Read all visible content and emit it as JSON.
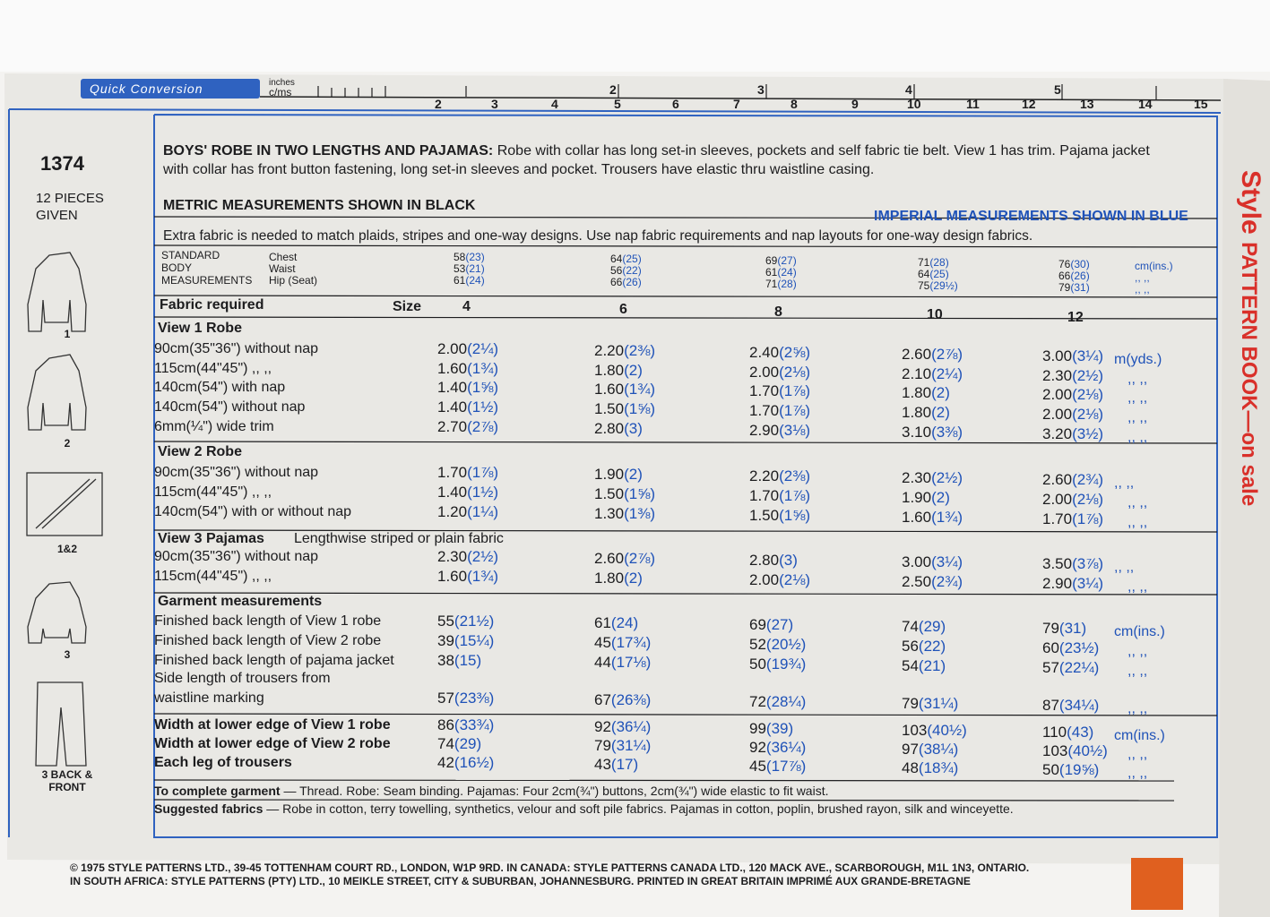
{
  "ruler": {
    "title": "Quick Conversion",
    "inches_label": "inches",
    "cm_label": "c/ms",
    "inch_numbers": [
      "2",
      "3",
      "4",
      "5"
    ],
    "cm_numbers": [
      "2",
      "3",
      "4",
      "5",
      "6",
      "7",
      "8",
      "9",
      "10",
      "11",
      "12",
      "13",
      "14",
      "15"
    ]
  },
  "sidebar": {
    "pattern_number": "1374",
    "pieces": "12 PIECES GIVEN",
    "views": [
      "1",
      "2",
      "1&2",
      "3",
      "3 BACK & FRONT"
    ]
  },
  "description": {
    "title": "BOYS' ROBE IN TWO LENGTHS AND PAJAMAS:",
    "text": "Robe with collar has long set-in sleeves, pockets and self fabric tie belt. View 1 has trim. Pajama jacket with collar has front button fastening, long set-in sleeves and pocket. Trousers have elastic thru waistline casing."
  },
  "metric_note": "METRIC MEASUREMENTS SHOWN IN BLACK",
  "imperial_note": "IMPERIAL MEASUREMENTS SHOWN IN BLUE",
  "extra_fabric_note": "Extra fabric is needed to match plaids, stripes and one-way designs. Use nap fabric requirements and nap layouts for one-way design fabrics.",
  "body_measurements": {
    "label": [
      "STANDARD",
      "BODY",
      "MEASUREMENTS"
    ],
    "rows": [
      {
        "name": "Chest",
        "cells": [
          [
            "58",
            "(23)"
          ],
          [
            "64",
            "(25)"
          ],
          [
            "69",
            "(27)"
          ],
          [
            "71",
            "(28)"
          ],
          [
            "76",
            "(30)"
          ]
        ],
        "unit": "cm(ins.)"
      },
      {
        "name": "Waist",
        "cells": [
          [
            "53",
            "(21)"
          ],
          [
            "56",
            "(22)"
          ],
          [
            "61",
            "(24)"
          ],
          [
            "64",
            "(25)"
          ],
          [
            "66",
            "(26)"
          ]
        ],
        "unit": ",,  ,,"
      },
      {
        "name": "Hip (Seat)",
        "cells": [
          [
            "61",
            "(24)"
          ],
          [
            "66",
            "(26)"
          ],
          [
            "71",
            "(28)"
          ],
          [
            "75",
            "(29½)"
          ],
          [
            "79",
            "(31)"
          ]
        ],
        "unit": ",,  ,,"
      }
    ]
  },
  "fabric_header": {
    "label": "Fabric required",
    "size_label": "Size",
    "sizes": [
      "4",
      "6",
      "8",
      "10",
      "12"
    ]
  },
  "sections": [
    {
      "title": "View 1  Robe",
      "rows": [
        {
          "label": "90cm(35\"36\") without nap",
          "cells": [
            [
              "2.00",
              "(2¼)"
            ],
            [
              "2.20",
              "(2⅜)"
            ],
            [
              "2.40",
              "(2⅝)"
            ],
            [
              "2.60",
              "(2⅞)"
            ],
            [
              "3.00",
              "(3¼)"
            ]
          ],
          "unit": "m(yds.)"
        },
        {
          "label": "115cm(44\"45\")    ,,     ,,",
          "cells": [
            [
              "1.60",
              "(1¾)"
            ],
            [
              "1.80",
              "(2)"
            ],
            [
              "2.00",
              "(2⅛)"
            ],
            [
              "2.10",
              "(2¼)"
            ],
            [
              "2.30",
              "(2½)"
            ]
          ],
          "unit": ",,  ,,"
        },
        {
          "label": "140cm(54\") with nap",
          "cells": [
            [
              "1.40",
              "(1⅝)"
            ],
            [
              "1.60",
              "(1¾)"
            ],
            [
              "1.70",
              "(1⅞)"
            ],
            [
              "1.80",
              "(2)"
            ],
            [
              "2.00",
              "(2⅛)"
            ]
          ],
          "unit": ",,  ,,"
        },
        {
          "label": "140cm(54\") without nap",
          "cells": [
            [
              "1.40",
              "(1½)"
            ],
            [
              "1.50",
              "(1⅝)"
            ],
            [
              "1.70",
              "(1⅞)"
            ],
            [
              "1.80",
              "(2)"
            ],
            [
              "2.00",
              "(2⅛)"
            ]
          ],
          "unit": ",,  ,,"
        },
        {
          "label": "6mm(¼\") wide trim",
          "cells": [
            [
              "2.70",
              "(2⅞)"
            ],
            [
              "2.80",
              "(3)"
            ],
            [
              "2.90",
              "(3⅛)"
            ],
            [
              "3.10",
              "(3⅜)"
            ],
            [
              "3.20",
              "(3½)"
            ]
          ],
          "unit": ",,  ,,"
        }
      ]
    },
    {
      "title": "View 2  Robe",
      "rows": [
        {
          "label": "90cm(35\"36\") without nap",
          "cells": [
            [
              "1.70",
              "(1⅞)"
            ],
            [
              "1.90",
              "(2)"
            ],
            [
              "2.20",
              "(2⅜)"
            ],
            [
              "2.30",
              "(2½)"
            ],
            [
              "2.60",
              "(2¾)"
            ]
          ],
          "unit": ",,  ,,"
        },
        {
          "label": "115cm(44\"45\")    ,,     ,,",
          "cells": [
            [
              "1.40",
              "(1½)"
            ],
            [
              "1.50",
              "(1⅝)"
            ],
            [
              "1.70",
              "(1⅞)"
            ],
            [
              "1.90",
              "(2)"
            ],
            [
              "2.00",
              "(2⅛)"
            ]
          ],
          "unit": ",,  ,,"
        },
        {
          "label": "140cm(54\") with or without nap",
          "cells": [
            [
              "1.20",
              "(1¼)"
            ],
            [
              "1.30",
              "(1⅜)"
            ],
            [
              "1.50",
              "(1⅝)"
            ],
            [
              "1.60",
              "(1¾)"
            ],
            [
              "1.70",
              "(1⅞)"
            ]
          ],
          "unit": ",,  ,,"
        }
      ]
    },
    {
      "title": "View 3  Pajamas",
      "note": "Lengthwise striped or plain fabric",
      "rows": [
        {
          "label": "90cm(35\"36\") without nap",
          "cells": [
            [
              "2.30",
              "(2½)"
            ],
            [
              "2.60",
              "(2⅞)"
            ],
            [
              "2.80",
              "(3)"
            ],
            [
              "3.00",
              "(3¼)"
            ],
            [
              "3.50",
              "(3⅞)"
            ]
          ],
          "unit": ",,  ,,"
        },
        {
          "label": "115cm(44\"45\")    ,,     ,,",
          "cells": [
            [
              "1.60",
              "(1¾)"
            ],
            [
              "1.80",
              "(2)"
            ],
            [
              "2.00",
              "(2⅛)"
            ],
            [
              "2.50",
              "(2¾)"
            ],
            [
              "2.90",
              "(3¼)"
            ]
          ],
          "unit": ",,  ,,"
        }
      ]
    },
    {
      "title": "Garment measurements",
      "rows": [
        {
          "label": "Finished back length of View 1 robe",
          "cells": [
            [
              "55",
              "(21½)"
            ],
            [
              "61",
              "(24)"
            ],
            [
              "69",
              "(27)"
            ],
            [
              "74",
              "(29)"
            ],
            [
              "79",
              "(31)"
            ]
          ],
          "unit": "cm(ins.)"
        },
        {
          "label": "Finished back length of View 2 robe",
          "cells": [
            [
              "39",
              "(15¼)"
            ],
            [
              "45",
              "(17¾)"
            ],
            [
              "52",
              "(20½)"
            ],
            [
              "56",
              "(22)"
            ],
            [
              "60",
              "(23½)"
            ]
          ],
          "unit": ",,  ,,"
        },
        {
          "label": "Finished back length of pajama jacket",
          "cells": [
            [
              "38",
              "(15)"
            ],
            [
              "44",
              "(17⅛)"
            ],
            [
              "50",
              "(19¾)"
            ],
            [
              "54",
              "(21)"
            ],
            [
              "57",
              "(22¼)"
            ]
          ],
          "unit": ",,  ,,"
        },
        {
          "label": [
            "Side length of trousers from",
            "waistline marking"
          ],
          "cells": [
            [
              "57",
              "(23⅜)"
            ],
            [
              "67",
              "(26⅜)"
            ],
            [
              "72",
              "(28¼)"
            ],
            [
              "79",
              "(31¼)"
            ],
            [
              "87",
              "(34¼)"
            ]
          ],
          "unit": ",,  ,,"
        }
      ]
    },
    {
      "rows": [
        {
          "label": "Width at lower edge of View 1 robe",
          "cells": [
            [
              "86",
              "(33¾)"
            ],
            [
              "92",
              "(36¼)"
            ],
            [
              "99",
              "(39)"
            ],
            [
              "103",
              "(40½)"
            ],
            [
              "110",
              "(43)"
            ]
          ],
          "unit": "cm(ins.)"
        },
        {
          "label": "Width at lower edge of View 2 robe",
          "cells": [
            [
              "74",
              "(29)"
            ],
            [
              "79",
              "(31¼)"
            ],
            [
              "92",
              "(36¼)"
            ],
            [
              "97",
              "(38¼)"
            ],
            [
              "103",
              "(40½)"
            ]
          ],
          "unit": ",,  ,,"
        },
        {
          "label": "Each leg of trousers",
          "cells": [
            [
              "42",
              "(16½)"
            ],
            [
              "43",
              "(17)"
            ],
            [
              "45",
              "(17⅞)"
            ],
            [
              "48",
              "(18¾)"
            ],
            [
              "50",
              "(19⅝)"
            ]
          ],
          "unit": ",,  ,,"
        }
      ]
    }
  ],
  "complete_garment": {
    "label": "To complete garment",
    "text": "— Thread. Robe: Seam binding. Pajamas: Four 2cm(¾\") buttons, 2cm(¾\") wide elastic to fit waist."
  },
  "suggested_fabrics": {
    "label": "Suggested fabrics",
    "text": "— Robe in cotton, terry towelling, synthetics, velour and soft pile fabrics. Pajamas in cotton, poplin, brushed rayon, silk and winceyette."
  },
  "footer": [
    "© 1975 STYLE PATTERNS LTD., 39-45 TOTTENHAM COURT RD., LONDON, W1P 9RD.  IN CANADA: STYLE PATTERNS CANADA LTD., 120 MACK AVE., SCARBOROUGH, M1L 1N3, ONTARIO.",
    "IN SOUTH AFRICA: STYLE PATTERNS (PTY) LTD., 10 MEIKLE STREET, CITY & SUBURBAN, JOHANNESBURG.  PRINTED IN GREAT BRITAIN  IMPRIMÉ AUX GRANDE-BRETAGNE"
  ],
  "side_brand": {
    "brand": "Style",
    "text": "PATTERN BOOK—on sale"
  }
}
